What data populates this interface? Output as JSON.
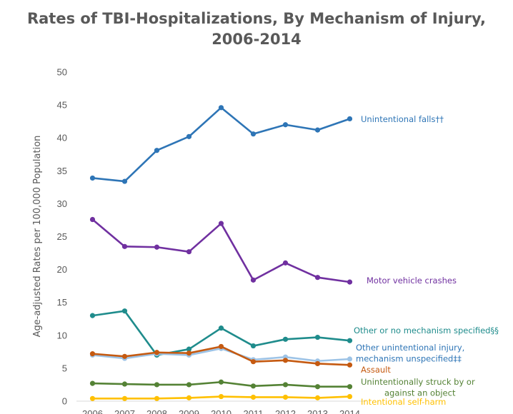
{
  "chart_data": {
    "type": "line",
    "title_line1": "Rates of TBI-Hospitalizations, By Mechanism of Injury,",
    "title_line2": "2006-2014",
    "xlabel": "",
    "ylabel": "Age-adjusted Rates per 100,000 Population",
    "ylim": [
      0,
      50
    ],
    "yticks": [
      "0",
      "5",
      "10",
      "15",
      "20",
      "25",
      "30",
      "35",
      "40",
      "45",
      "50"
    ],
    "categories": [
      "2006",
      "2007",
      "2008",
      "2009",
      "2010",
      "2011",
      "2012",
      "2013",
      "2014"
    ],
    "grid": false,
    "legend": "inline labels at line ends",
    "series": [
      {
        "name": "Unintentional falls††",
        "label_lines": [
          "Unintentional falls††"
        ],
        "color": "#2E75B6",
        "values": [
          33.9,
          33.4,
          38.1,
          40.2,
          44.6,
          40.6,
          42.0,
          41.2,
          42.9
        ]
      },
      {
        "name": "Motor vehicle crashes",
        "label_lines": [
          "Motor vehicle crashes"
        ],
        "color": "#7030A0",
        "values": [
          27.6,
          23.5,
          23.4,
          22.7,
          27.0,
          18.4,
          21.0,
          18.8,
          18.1
        ]
      },
      {
        "name": "Other or no mechanism specified§§",
        "label_lines": [
          "Other or no mechanism specified§§"
        ],
        "color": "#1F8C8C",
        "values": [
          13.0,
          13.7,
          7.0,
          7.9,
          11.1,
          8.4,
          9.4,
          9.7,
          9.2
        ]
      },
      {
        "name": "Other unintentional injury, mechanism unspecified‡‡",
        "label_lines": [
          "Other unintentional injury,",
          "mechanism unspecified‡‡"
        ],
        "color": "#9DC3E6",
        "values": [
          7.0,
          6.5,
          7.2,
          7.0,
          8.0,
          6.3,
          6.7,
          6.1,
          6.4
        ]
      },
      {
        "name": "Assault",
        "label_lines": [
          "Assault"
        ],
        "color": "#C55A11",
        "values": [
          7.2,
          6.8,
          7.4,
          7.3,
          8.3,
          6.0,
          6.2,
          5.7,
          5.5
        ]
      },
      {
        "name": "Unintentionally struck by or against an object",
        "label_lines": [
          "Unintentionally struck by or",
          "against an object"
        ],
        "color": "#548235",
        "values": [
          2.7,
          2.6,
          2.5,
          2.5,
          2.9,
          2.3,
          2.5,
          2.2,
          2.2
        ]
      },
      {
        "name": "Intentional self-harm",
        "label_lines": [
          "Intentional self-harm"
        ],
        "color": "#FFC000",
        "values": [
          0.4,
          0.4,
          0.4,
          0.5,
          0.7,
          0.6,
          0.6,
          0.5,
          0.7
        ]
      }
    ]
  }
}
